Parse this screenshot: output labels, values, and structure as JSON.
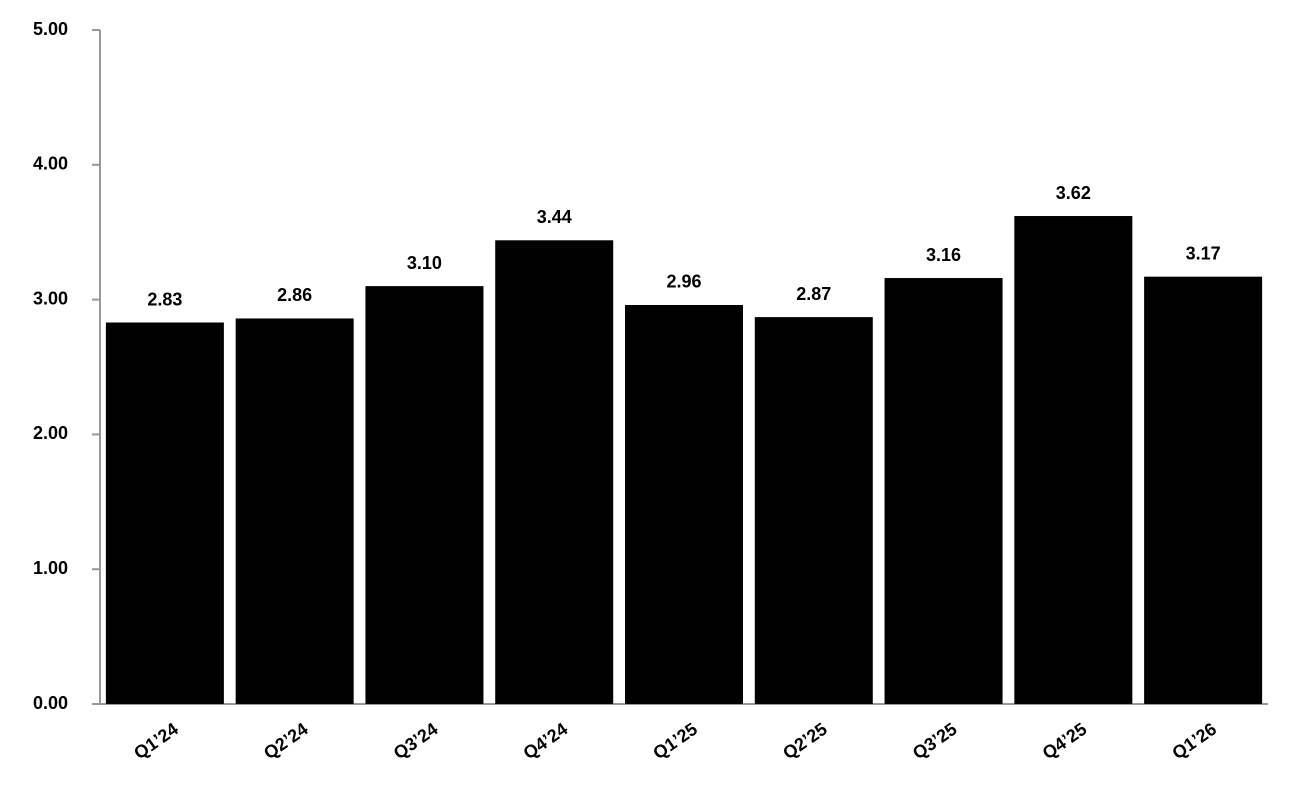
{
  "chart_data": {
    "type": "bar",
    "categories": [
      "Q1’24",
      "Q2’24",
      "Q3’24",
      "Q4’24",
      "Q1’25",
      "Q2’25",
      "Q3’25",
      "Q4’25",
      "Q1’26"
    ],
    "values": [
      2.83,
      2.86,
      3.1,
      3.44,
      2.96,
      2.87,
      3.16,
      3.62,
      3.17
    ],
    "value_labels": [
      "2.83",
      "2.86",
      "3.10",
      "3.44",
      "2.96",
      "2.87",
      "3.16",
      "3.62",
      "3.17"
    ],
    "color": "#000000",
    "ylim": [
      0,
      5
    ],
    "yticks": [
      {
        "value": 0,
        "label": "0.00"
      },
      {
        "value": 1,
        "label": "1.00"
      },
      {
        "value": 2,
        "label": "2.00"
      },
      {
        "value": 3,
        "label": "3.00"
      },
      {
        "value": 4,
        "label": "4.00"
      },
      {
        "value": 5,
        "label": "5.00"
      }
    ],
    "grid": false
  }
}
